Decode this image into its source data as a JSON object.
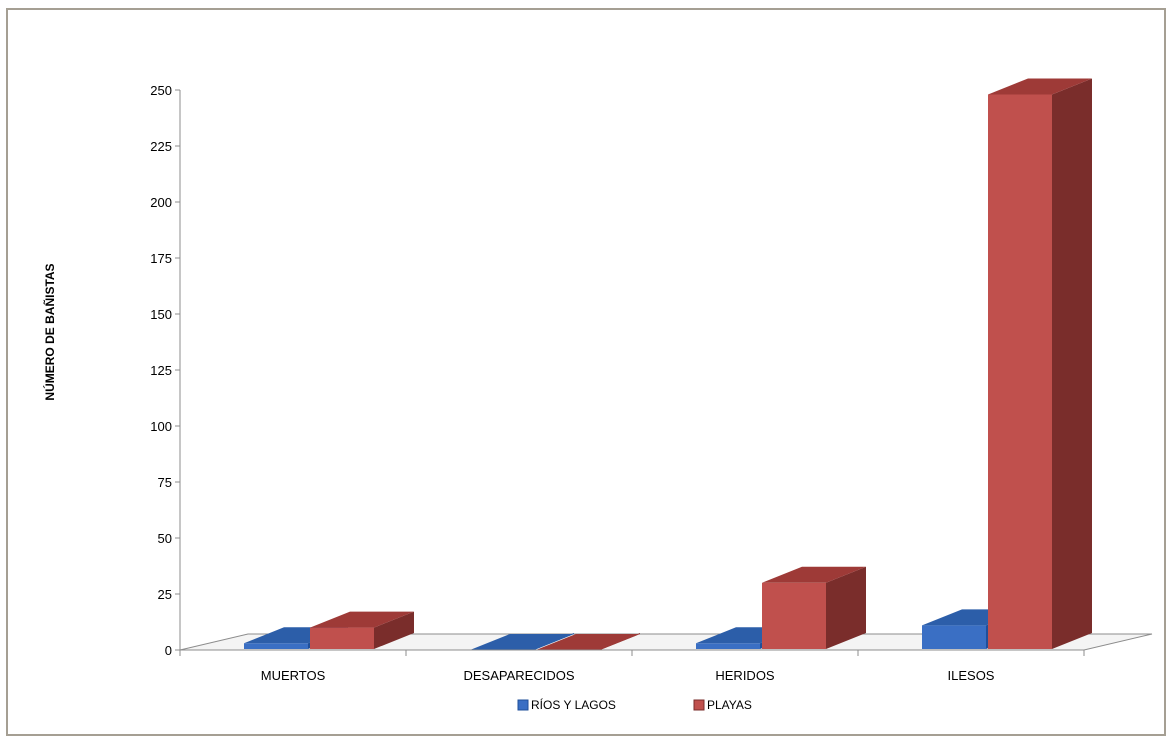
{
  "chart_data": {
    "type": "bar",
    "style": "3d-clustered-column",
    "title": "",
    "xlabel": "",
    "ylabel": "NÚMERO DE BAÑISTAS",
    "ylim": [
      0,
      250
    ],
    "yticks": [
      "0",
      "25",
      "50",
      "75",
      "100",
      "125",
      "150",
      "175",
      "200",
      "225",
      "250"
    ],
    "categories": [
      "MUERTOS",
      "DESAPARECIDOS",
      "HERIDOS",
      "ILESOS"
    ],
    "series": [
      {
        "name": "RÍOS Y LAGOS",
        "values": [
          3,
          0,
          3,
          11
        ],
        "color": "#3a6fc4",
        "side_color": "#1f4f9a",
        "top_color": "#2c5ea9"
      },
      {
        "name": "PLAYAS",
        "values": [
          10,
          0,
          30,
          248
        ],
        "color": "#c0504d",
        "side_color": "#7a2d2b",
        "top_color": "#9e3a37"
      }
    ],
    "grid": false,
    "legend": "bottom"
  }
}
